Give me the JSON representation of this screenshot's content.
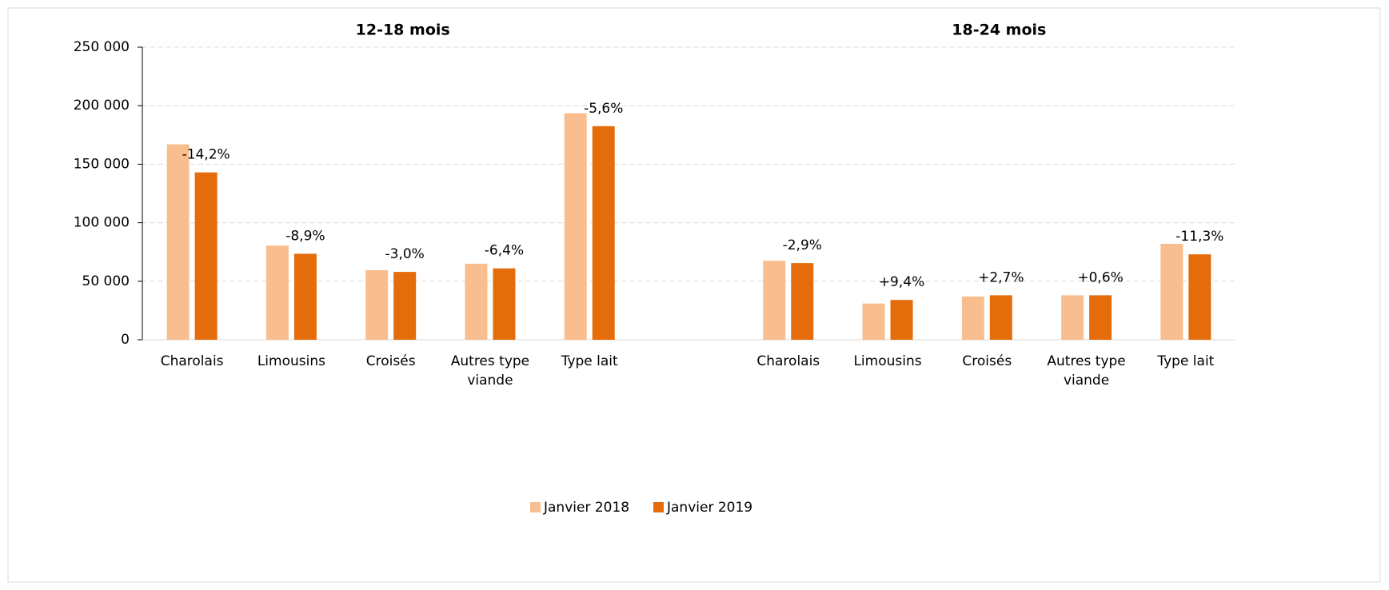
{
  "chart_data": {
    "type": "bar",
    "group_titles": [
      "12-18 mois",
      "18-24 mois"
    ],
    "categories": [
      "Charolais",
      "Limousins",
      "Croisés",
      "Autres type viande",
      "Type lait",
      null,
      "Charolais",
      "Limousins",
      "Croisés",
      "Autres type viande",
      "Type lait"
    ],
    "series": [
      {
        "name": "Janvier 2018",
        "color": "#f9be8f",
        "values": [
          167000,
          80500,
          59500,
          65000,
          193500,
          null,
          67500,
          31000,
          37000,
          38000,
          82000
        ]
      },
      {
        "name": "Janvier 2019",
        "color": "#e46c0a",
        "values": [
          143000,
          73500,
          58000,
          61000,
          182500,
          null,
          65500,
          34000,
          38000,
          38000,
          73000
        ]
      }
    ],
    "annotations": [
      "-14,2%",
      "-8,9%",
      "-3,0%",
      "-6,4%",
      "-5,6%",
      null,
      "-2,9%",
      "+9,4%",
      "+2,7%",
      "+0,6%",
      "-11,3%"
    ],
    "ylim": [
      0,
      250000
    ],
    "yticks": [
      0,
      {
        "value": 50000,
        "label": "50 000"
      },
      {
        "value": 100000,
        "label": "100 000"
      },
      {
        "value": 150000,
        "label": "150 000"
      },
      {
        "value": 200000,
        "label": "200 000"
      },
      {
        "value": 250000,
        "label": "250 000"
      }
    ],
    "grid": true,
    "legend": "bottom"
  }
}
